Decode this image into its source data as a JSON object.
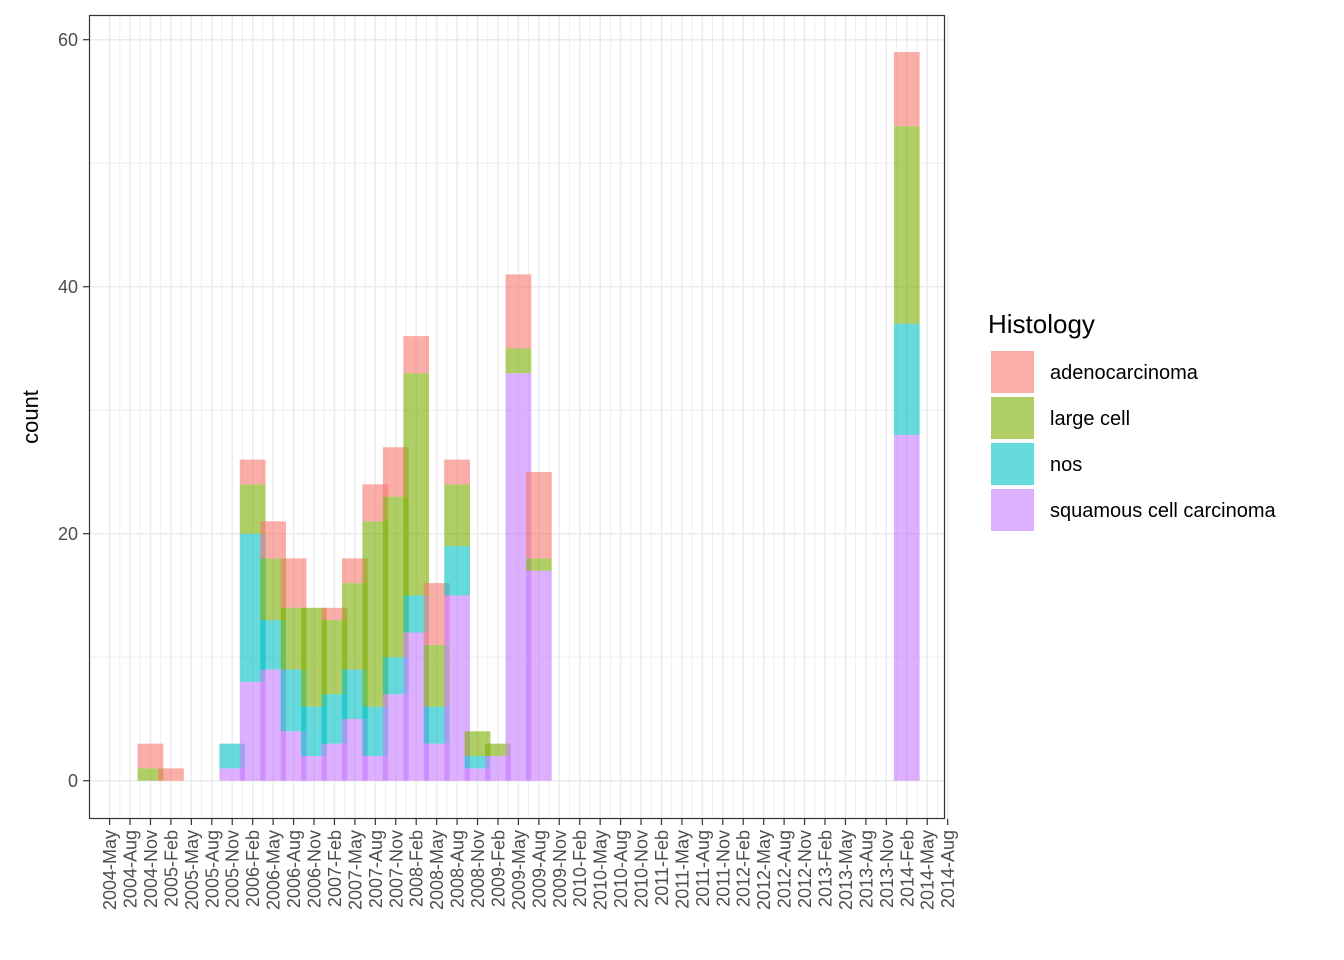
{
  "chart_data": {
    "type": "bar",
    "stacked": true,
    "title": "",
    "xlabel": "",
    "ylabel": "count",
    "ylim": [
      -3.1,
      62
    ],
    "yticks": [
      0,
      20,
      40,
      60
    ],
    "grid": true,
    "legend_position": "right",
    "legend_title": "Histology",
    "categories": [
      "2004-May",
      "2004-Aug",
      "2004-Nov",
      "2005-Feb",
      "2005-May",
      "2005-Aug",
      "2005-Nov",
      "2006-Feb",
      "2006-May",
      "2006-Aug",
      "2006-Nov",
      "2007-Feb",
      "2007-May",
      "2007-Aug",
      "2007-Nov",
      "2008-Feb",
      "2008-May",
      "2008-Aug",
      "2008-Nov",
      "2009-Feb",
      "2009-May",
      "2009-Aug",
      "2009-Nov",
      "2010-Feb",
      "2010-May",
      "2010-Aug",
      "2010-Nov",
      "2011-Feb",
      "2011-May",
      "2011-Aug",
      "2011-Nov",
      "2012-Feb",
      "2012-May",
      "2012-Aug",
      "2012-Nov",
      "2013-Feb",
      "2013-May",
      "2013-Aug",
      "2013-Nov",
      "2014-Feb",
      "2014-May",
      "2014-Aug"
    ],
    "bars": [
      {
        "x": "2004-Aug",
        "values": {
          "squamous cell carcinoma": 0,
          "nos": 0,
          "large cell": 1,
          "adenocarcinoma": 2
        }
      },
      {
        "x": "2004-Nov",
        "values": {
          "squamous cell carcinoma": 0,
          "nos": 0,
          "large cell": 0,
          "adenocarcinoma": 1
        }
      },
      {
        "x": "2005-Aug",
        "values": {
          "squamous cell carcinoma": 1,
          "nos": 2,
          "large cell": 0,
          "adenocarcinoma": 0
        }
      },
      {
        "x": "2005-Nov",
        "values": {
          "squamous cell carcinoma": 8,
          "nos": 12,
          "large cell": 4,
          "adenocarcinoma": 2
        }
      },
      {
        "x": "2006-Feb",
        "values": {
          "squamous cell carcinoma": 9,
          "nos": 4,
          "large cell": 5,
          "adenocarcinoma": 3
        }
      },
      {
        "x": "2006-May",
        "values": {
          "squamous cell carcinoma": 4,
          "nos": 5,
          "large cell": 5,
          "adenocarcinoma": 4
        }
      },
      {
        "x": "2006-Aug",
        "values": {
          "squamous cell carcinoma": 2,
          "nos": 4,
          "large cell": 8,
          "adenocarcinoma": 0
        }
      },
      {
        "x": "2006-Nov",
        "values": {
          "squamous cell carcinoma": 3,
          "nos": 4,
          "large cell": 6,
          "adenocarcinoma": 1
        }
      },
      {
        "x": "2007-Feb",
        "values": {
          "squamous cell carcinoma": 5,
          "nos": 4,
          "large cell": 7,
          "adenocarcinoma": 2
        }
      },
      {
        "x": "2007-May",
        "values": {
          "squamous cell carcinoma": 2,
          "nos": 4,
          "large cell": 15,
          "adenocarcinoma": 3
        }
      },
      {
        "x": "2007-Aug",
        "values": {
          "squamous cell carcinoma": 7,
          "nos": 3,
          "large cell": 13,
          "adenocarcinoma": 4
        }
      },
      {
        "x": "2007-Nov",
        "values": {
          "squamous cell carcinoma": 12,
          "nos": 3,
          "large cell": 18,
          "adenocarcinoma": 3
        }
      },
      {
        "x": "2008-Feb",
        "values": {
          "squamous cell carcinoma": 3,
          "nos": 3,
          "large cell": 5,
          "adenocarcinoma": 5
        }
      },
      {
        "x": "2008-May",
        "values": {
          "squamous cell carcinoma": 15,
          "nos": 4,
          "large cell": 5,
          "adenocarcinoma": 2
        }
      },
      {
        "x": "2008-Aug",
        "values": {
          "squamous cell carcinoma": 1,
          "nos": 1,
          "large cell": 2,
          "adenocarcinoma": 0
        }
      },
      {
        "x": "2008-Nov",
        "values": {
          "squamous cell carcinoma": 2,
          "nos": 0,
          "large cell": 1,
          "adenocarcinoma": 0
        }
      },
      {
        "x": "2009-Feb",
        "values": {
          "squamous cell carcinoma": 33,
          "nos": 0,
          "large cell": 2,
          "adenocarcinoma": 6
        }
      },
      {
        "x": "2009-May",
        "values": {
          "squamous cell carcinoma": 17,
          "nos": 0,
          "large cell": 1,
          "adenocarcinoma": 7
        }
      },
      {
        "x": "2013-Nov",
        "values": {
          "squamous cell carcinoma": 28,
          "nos": 9,
          "large cell": 16,
          "adenocarcinoma": 6
        }
      }
    ],
    "series": [
      {
        "name": "adenocarcinoma",
        "color": "#F8766D"
      },
      {
        "name": "large cell",
        "color": "#7CAE00"
      },
      {
        "name": "nos",
        "color": "#00BFC4"
      },
      {
        "name": "squamous cell carcinoma",
        "color": "#C77CFF"
      }
    ],
    "stack_order": [
      "squamous cell carcinoma",
      "nos",
      "large cell",
      "adenocarcinoma"
    ],
    "fill_opacity": 0.6
  }
}
